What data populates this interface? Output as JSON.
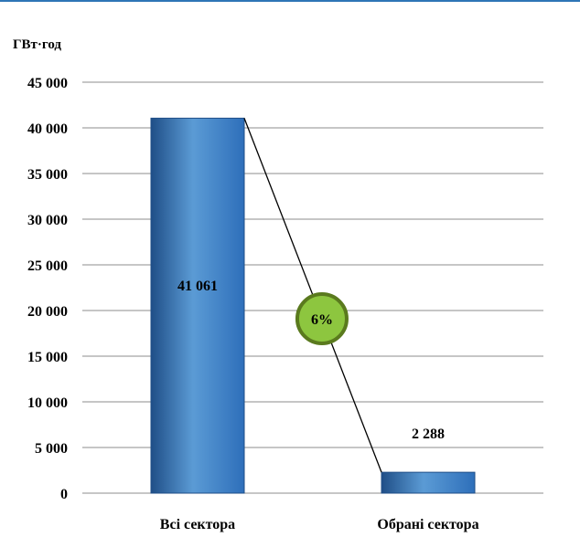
{
  "chart_data": {
    "type": "bar",
    "title": "",
    "ylabel": "ГВт·год",
    "xlabel": "",
    "categories": [
      "Всі сектора",
      "Обрані сектора"
    ],
    "values": [
      41061,
      2288
    ],
    "value_labels": [
      "41 061",
      "2 288"
    ],
    "ylim": [
      0,
      45000
    ],
    "yticks": [
      0,
      5000,
      10000,
      15000,
      20000,
      25000,
      30000,
      35000,
      40000,
      45000
    ],
    "ytick_labels": [
      "0",
      "5 000",
      "10 000",
      "15 000",
      "20 000",
      "25 000",
      "30 000",
      "35 000",
      "40 000",
      "45 000"
    ],
    "grid": true,
    "annotation": {
      "label": "6%",
      "fill": "#8dc63f",
      "stroke": "#5a7a1e"
    },
    "colors": {
      "bar": "#2e6fba",
      "bar_light": "#5b9bd5",
      "bar_dark": "#1f4e87",
      "grid": "#8c8c8c",
      "frame_line": "#2e75b6"
    }
  }
}
